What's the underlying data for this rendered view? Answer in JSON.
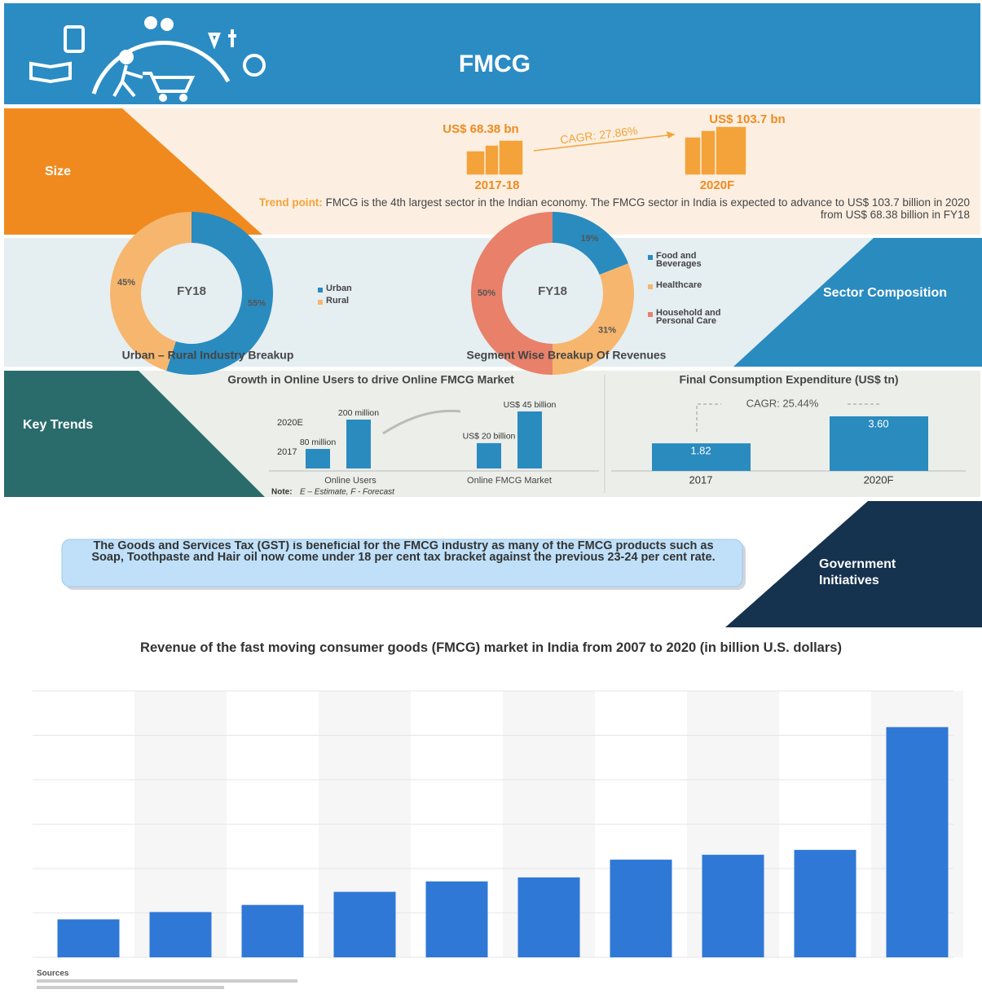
{
  "header": {
    "title": "FMCG"
  },
  "size": {
    "label": "Size",
    "cagr": "CAGR: 27.86%",
    "points": [
      {
        "value_label": "US$ 68.38 bn",
        "period": "2017-18"
      },
      {
        "value_label": "US$ 103.7 bn",
        "period": "2020F"
      }
    ],
    "trend_point": "Trend point:",
    "trend_text": "FMCG is the 4th largest sector in the Indian economy. The FMCG sector in India is expected to advance to US$ 103.7 billion in 2020 from US$ 68.38 billion in FY18"
  },
  "sector_composition": {
    "label": "Sector Composition",
    "charts": [
      {
        "type": "donut",
        "center_label": "FY18",
        "title": "Urban – Rural Industry Breakup",
        "segments": [
          {
            "name": "Urban",
            "value": 55,
            "value_label": "55%",
            "color": "#2a8bbf"
          },
          {
            "name": "Rural",
            "value": 45,
            "value_label": "45%",
            "color": "#f7b66e"
          }
        ]
      },
      {
        "type": "donut",
        "center_label": "FY18",
        "title": "Segment Wise Breakup Of Revenues",
        "segments": [
          {
            "name": "Food and Beverages",
            "value": 19,
            "value_label": "19%",
            "color": "#2a8bbf"
          },
          {
            "name": "Healthcare",
            "value": 31,
            "value_label": "31%",
            "color": "#f7b66e"
          },
          {
            "name": "Household and Personal Care",
            "value": 50,
            "value_label": "50%",
            "color": "#e8806a"
          }
        ]
      }
    ]
  },
  "key_trends": {
    "label": "Key Trends",
    "online": {
      "title": "Growth in Online Users to drive Online FMCG Market",
      "color": "#2a8bbf",
      "groups": [
        {
          "name": "Online Users",
          "bars": [
            {
              "period": "2017",
              "value": 80,
              "value_label": "80 million"
            },
            {
              "period": "2020E",
              "value": 200,
              "value_label": "200 million"
            }
          ]
        },
        {
          "name": "Online FMCG Market",
          "bars": [
            {
              "value": 20,
              "value_label": "US$ 20 billion"
            },
            {
              "value": 45,
              "value_label": "US$ 45 billion"
            }
          ]
        }
      ],
      "note_label": "Note:",
      "note": "E – Estimate, F - Forecast"
    },
    "expenditure": {
      "title": "Final Consumption Expenditure (US$ tn)",
      "cagr": "CAGR: 25.44%",
      "categories": [
        "2017",
        "2020F"
      ],
      "values": [
        1.82,
        3.6
      ],
      "value_labels": [
        "1.82",
        "3.60"
      ],
      "color": "#2a8bbf"
    }
  },
  "government": {
    "label": "Government Initiatives",
    "text": "The Goods and Services Tax (GST) is beneficial for the FMCG industry as many of the FMCG products such as Soap, Toothpaste and Hair oil now come under 18 per cent tax bracket against the previous 23-24 per cent rate."
  },
  "revenue_chart": {
    "type": "bar",
    "title": "Revenue of the fast moving consumer goods (FMCG) market in India from 2007 to 2020 (in billion U.S. dollars)",
    "categories": [
      null,
      null,
      null,
      null,
      null,
      null,
      null,
      null,
      null,
      null
    ],
    "values": [
      17.1,
      20.4,
      23.6,
      29.5,
      34.2,
      36,
      44,
      46.2,
      48.4,
      103.7
    ],
    "color": "#2f78d6",
    "ylim": [
      0,
      120
    ],
    "gridlines": [
      0,
      20,
      40,
      60,
      80,
      100,
      120
    ],
    "source_label": "Sources"
  }
}
